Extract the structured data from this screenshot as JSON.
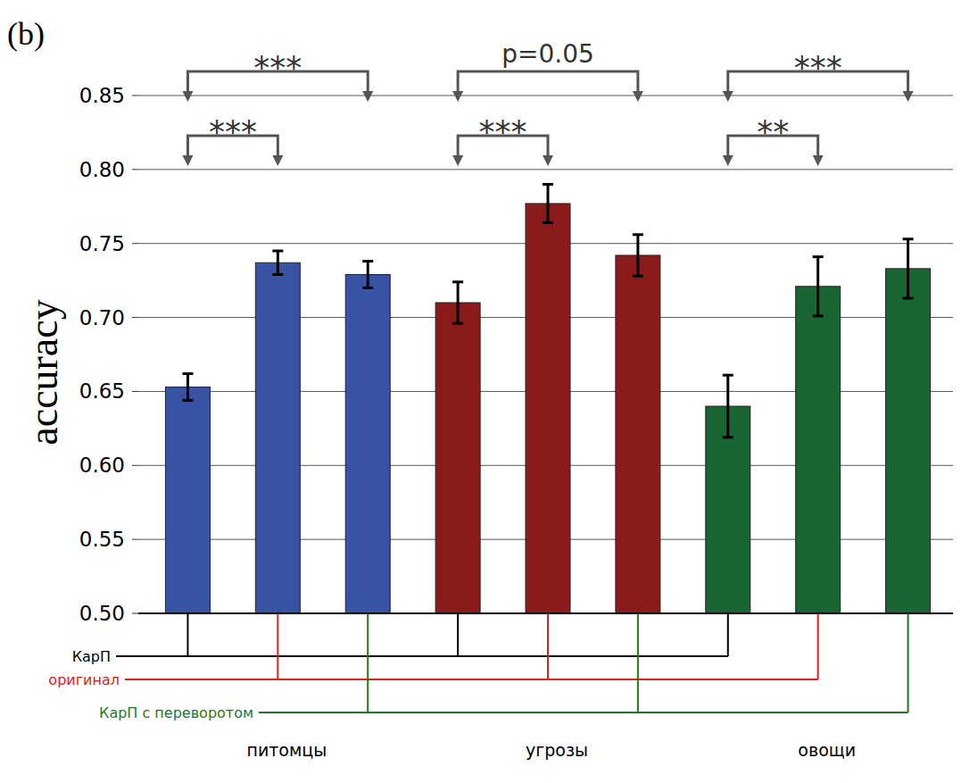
{
  "chart_data": {
    "type": "bar",
    "title": "(b)",
    "y_label": "accuracy",
    "categories": [
      "питомцы",
      "угрозы",
      "овощи"
    ],
    "series": [
      {
        "name": "КарП",
        "color": "#000000",
        "colors": [
          "#3953a4",
          "#8b1a1a",
          "#1a6632"
        ],
        "values": [
          0.653,
          0.71,
          0.64
        ],
        "errors": [
          0.009,
          0.014,
          0.021
        ]
      },
      {
        "name": "оригинал",
        "color": "#e0201a",
        "colors": [
          "#3953a4",
          "#8b1a1a",
          "#1a6632"
        ],
        "values": [
          0.737,
          0.777,
          0.721
        ],
        "errors": [
          0.008,
          0.013,
          0.02
        ]
      },
      {
        "name": "КарП с переворотом",
        "color": "#1f7a1f",
        "colors": [
          "#3953a4",
          "#8b1a1a",
          "#1a6632"
        ],
        "values": [
          0.729,
          0.742,
          0.733
        ],
        "errors": [
          0.009,
          0.014,
          0.02
        ]
      }
    ],
    "ylim": [
      0.5,
      0.85
    ],
    "yticks": [
      {
        "value": 0.5,
        "label": "0.50"
      },
      0.55,
      {
        "value": 0.6,
        "label": "0.60"
      },
      0.65,
      {
        "value": 0.7,
        "label": "0.70"
      },
      0.75,
      {
        "value": 0.8,
        "label": "0.80"
      },
      0.85
    ],
    "grid": true,
    "annotations": [
      {
        "text": "***",
        "category": 0,
        "from": 0,
        "to": 2
      },
      {
        "text": "***",
        "category": 0,
        "from": 0,
        "to": 1
      },
      {
        "text": "p=0.05",
        "category": 1,
        "from": 0,
        "to": 2
      },
      {
        "text": "***",
        "category": 1,
        "from": 0,
        "to": 1
      },
      {
        "text": "***",
        "category": 2,
        "from": 0,
        "to": 2
      },
      {
        "text": "**",
        "category": 2,
        "from": 0,
        "to": 1
      }
    ]
  }
}
